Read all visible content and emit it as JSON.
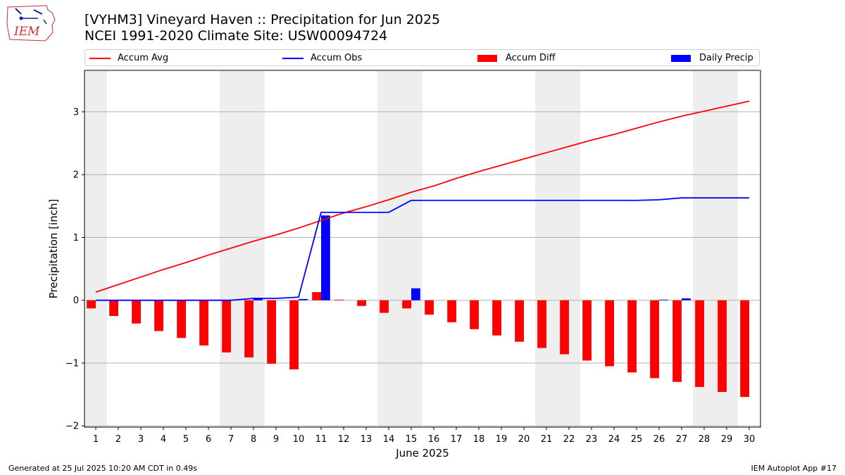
{
  "title": {
    "line1": "[VYHM3] Vineyard Haven :: Precipitation for Jun 2025",
    "line2": "NCEI 1991-2020 Climate Site: USW00094724"
  },
  "logo": {
    "text": "IEM",
    "icon": "iem-iowa-logo"
  },
  "footer": {
    "left": "Generated at 25 Jul 2025 10:20 AM CDT in 0.49s",
    "right": "IEM Autoplot App #17"
  },
  "colors": {
    "accum_avg": "#ff0000",
    "accum_obs": "#0000ff",
    "accum_diff": "#ff0000",
    "daily_precip": "#0000ff",
    "weekend": "#eeeeee",
    "grid": "#b0b0b0"
  },
  "chart_data": {
    "type": "bar",
    "xlabel": "June 2025",
    "ylabel": "Precipitation [inch]",
    "xlim": [
      0.5,
      30.5
    ],
    "ylim": [
      -2.02,
      3.66
    ],
    "yticks": [
      -2,
      -1,
      0,
      1,
      2,
      3
    ],
    "grid": "horizontal",
    "legend_position": "top",
    "x": [
      1,
      2,
      3,
      4,
      5,
      6,
      7,
      8,
      9,
      10,
      11,
      12,
      13,
      14,
      15,
      16,
      17,
      18,
      19,
      20,
      21,
      22,
      23,
      24,
      25,
      26,
      27,
      28,
      29,
      30
    ],
    "weekend_days": [
      1,
      7,
      8,
      14,
      15,
      21,
      22,
      28,
      29
    ],
    "series": [
      {
        "name": "Accum Avg",
        "kind": "line",
        "values": [
          0.13,
          0.25,
          0.37,
          0.49,
          0.6,
          0.72,
          0.83,
          0.94,
          1.04,
          1.15,
          1.27,
          1.39,
          1.49,
          1.6,
          1.72,
          1.82,
          1.94,
          2.05,
          2.15,
          2.25,
          2.35,
          2.45,
          2.55,
          2.64,
          2.74,
          2.84,
          2.93,
          3.01,
          3.09,
          3.17
        ]
      },
      {
        "name": "Accum Obs",
        "kind": "line",
        "values": [
          0,
          0,
          0,
          0,
          0,
          0,
          0,
          0.03,
          0.03,
          0.05,
          1.4,
          1.4,
          1.4,
          1.4,
          1.59,
          1.59,
          1.59,
          1.59,
          1.59,
          1.59,
          1.59,
          1.59,
          1.59,
          1.59,
          1.59,
          1.6,
          1.63,
          1.63,
          1.63,
          1.63
        ]
      },
      {
        "name": "Accum Diff",
        "kind": "bar",
        "values": [
          -0.13,
          -0.25,
          -0.37,
          -0.49,
          -0.6,
          -0.72,
          -0.83,
          -0.91,
          -1.01,
          -1.1,
          0.13,
          0.01,
          -0.09,
          -0.2,
          -0.13,
          -0.23,
          -0.35,
          -0.46,
          -0.56,
          -0.66,
          -0.76,
          -0.86,
          -0.96,
          -1.05,
          -1.15,
          -1.24,
          -1.3,
          -1.38,
          -1.46,
          -1.54
        ]
      },
      {
        "name": "Daily Precip",
        "kind": "bar",
        "values": [
          0,
          0,
          0,
          0,
          0,
          0,
          0,
          0.03,
          0,
          0.02,
          1.35,
          0,
          0,
          0,
          0.19,
          0,
          0,
          0,
          0,
          0,
          0,
          0,
          0,
          0,
          0,
          0.01,
          0.03,
          0,
          0,
          0
        ]
      }
    ]
  }
}
